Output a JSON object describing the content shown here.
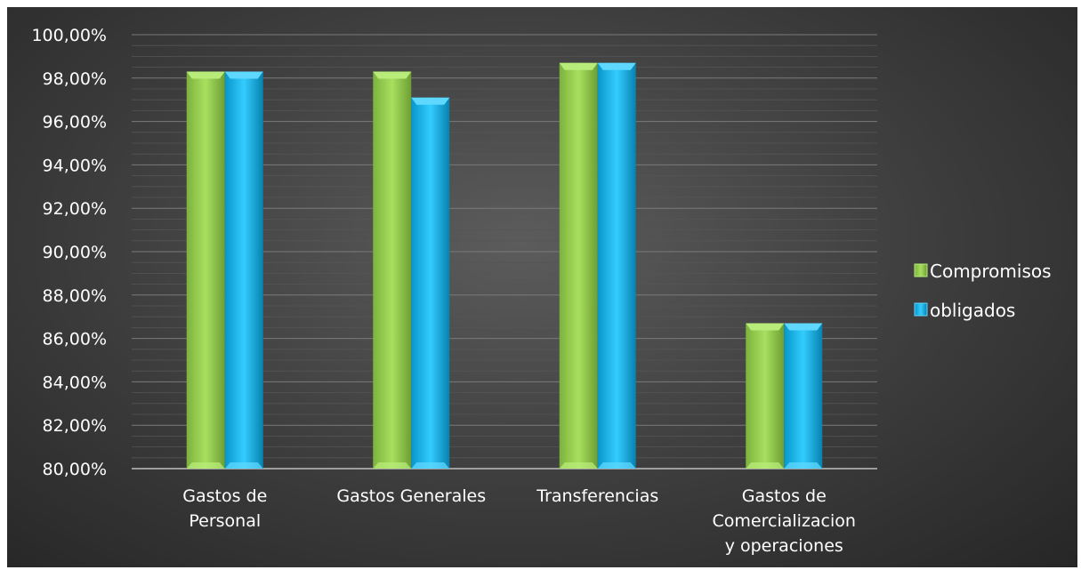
{
  "chart_data": {
    "type": "bar",
    "categories": [
      [
        "Gastos de",
        "Personal"
      ],
      [
        "Gastos Generales"
      ],
      [
        "Transferencias"
      ],
      [
        "Gastos de",
        "Comercializacion",
        "y operaciones"
      ]
    ],
    "series": [
      {
        "name": "Compromisos",
        "values": [
          98.3,
          98.3,
          98.7,
          86.7
        ]
      },
      {
        "name": "obligados",
        "values": [
          98.3,
          97.1,
          98.7,
          86.7
        ]
      }
    ],
    "ylim": [
      80,
      100
    ],
    "yticks": [
      "80,00%",
      "82,00%",
      "84,00%",
      "86,00%",
      "88,00%",
      "90,00%",
      "92,00%",
      "94,00%",
      "96,00%",
      "98,00%",
      "100,00%"
    ],
    "grid": true,
    "legend_position": "right",
    "colors": {
      "Compromisos": "#92d050",
      "obligados": "#00b0f0",
      "background": "#3a3a3a",
      "text": "#ffffff"
    }
  }
}
